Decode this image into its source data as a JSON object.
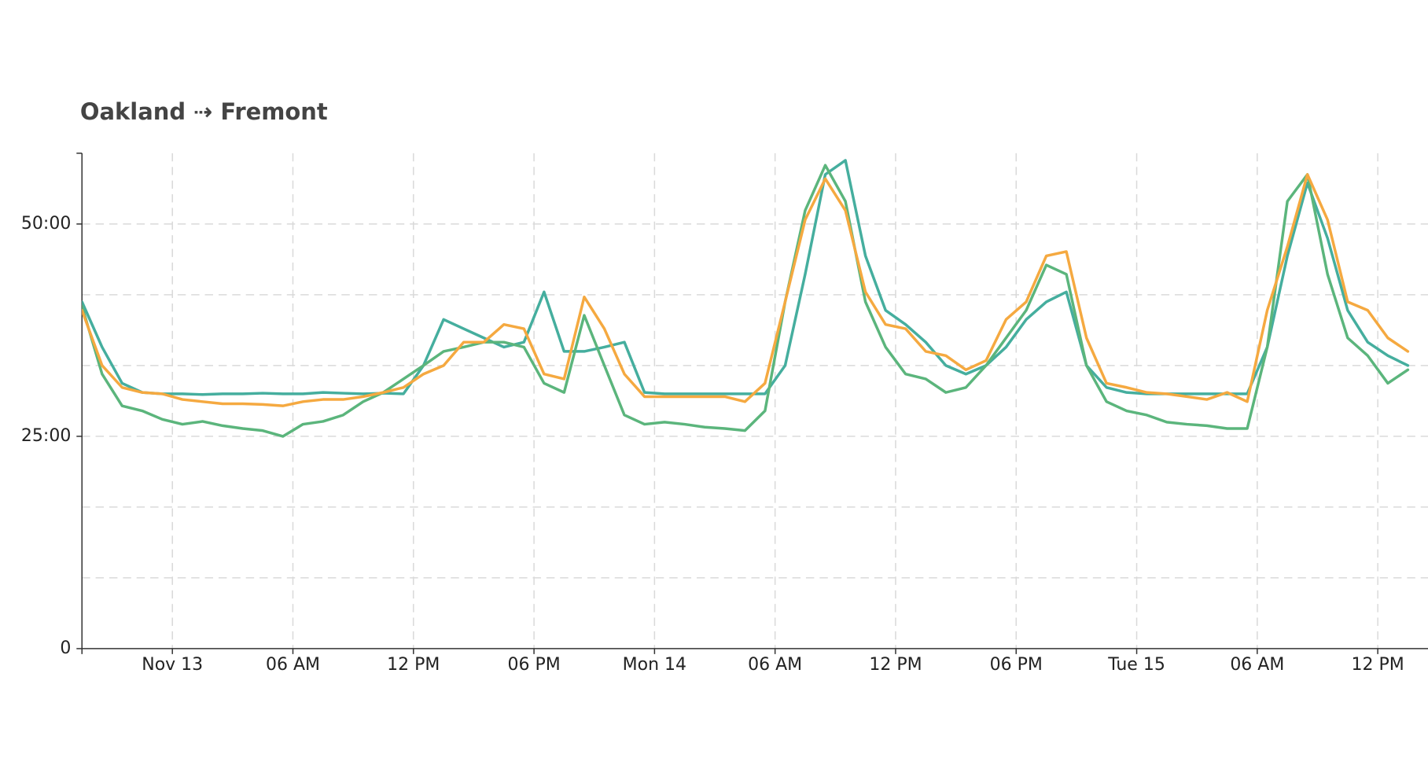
{
  "chart_data": {
    "type": "line",
    "title": "Oakland ⇢ Fremont",
    "x": [
      -4.5,
      -3.5,
      -2.5,
      -1.5,
      -0.5,
      0.5,
      1.5,
      2.5,
      3.5,
      4.5,
      5.5,
      6.5,
      7.5,
      8.5,
      9.5,
      10.5,
      11.5,
      12.5,
      13.5,
      14.5,
      15.5,
      16.5,
      17.5,
      18.5,
      19.5,
      20.5,
      21.5,
      22.5,
      23.5,
      24.5,
      25.5,
      26.5,
      27.5,
      28.5,
      29.5,
      30.5,
      31.5,
      32.5,
      33.5,
      34.5,
      35.5,
      36.5,
      37.5,
      38.5,
      39.5,
      40.5,
      41.5,
      42.5,
      43.5,
      44.5,
      45.5,
      46.5,
      47.5,
      48.5,
      49.5,
      50.5,
      51.5,
      52.5,
      53.5,
      54.5,
      55.5,
      56.5,
      57.5,
      58.5,
      59.5,
      60.5,
      61.5
    ],
    "series": [
      {
        "color": "#45ae9e",
        "values": [
          2450,
          2130,
          1875,
          1810,
          1800,
          1800,
          1795,
          1800,
          1800,
          1805,
          1800,
          1800,
          1810,
          1805,
          1800,
          1805,
          1800,
          2000,
          2325,
          2260,
          2195,
          2130,
          2165,
          2520,
          2100,
          2100,
          2130,
          2165,
          1810,
          1800,
          1800,
          1800,
          1800,
          1800,
          1800,
          2000,
          2645,
          3350,
          3450,
          2775,
          2390,
          2290,
          2165,
          2000,
          1940,
          2000,
          2130,
          2325,
          2450,
          2520,
          2000,
          1845,
          1810,
          1800,
          1800,
          1800,
          1800,
          1800,
          1800,
          2130,
          2775,
          3290,
          2900,
          2390,
          2165,
          2070,
          2000
        ]
      },
      {
        "color": "#5bb57c",
        "values": [
          2420,
          1940,
          1715,
          1680,
          1620,
          1585,
          1605,
          1575,
          1555,
          1540,
          1500,
          1585,
          1605,
          1650,
          1745,
          1810,
          1905,
          2000,
          2100,
          2130,
          2165,
          2165,
          2130,
          1875,
          1810,
          2355,
          2000,
          1650,
          1585,
          1600,
          1585,
          1565,
          1555,
          1540,
          1680,
          2450,
          3095,
          3415,
          3160,
          2450,
          2130,
          1940,
          1905,
          1810,
          1845,
          2000,
          2195,
          2390,
          2710,
          2645,
          2000,
          1745,
          1680,
          1650,
          1600,
          1585,
          1575,
          1555,
          1555,
          2130,
          3160,
          3350,
          2645,
          2195,
          2070,
          1875,
          1970
        ]
      },
      {
        "color": "#f5a940",
        "values": [
          2390,
          2000,
          1845,
          1810,
          1800,
          1760,
          1745,
          1730,
          1730,
          1725,
          1715,
          1745,
          1760,
          1760,
          1780,
          1810,
          1845,
          1940,
          2000,
          2165,
          2165,
          2290,
          2260,
          1940,
          1905,
          2485,
          2260,
          1940,
          1780,
          1780,
          1780,
          1780,
          1780,
          1745,
          1875,
          2450,
          3030,
          3320,
          3095,
          2520,
          2290,
          2260,
          2100,
          2070,
          1970,
          2035,
          2325,
          2450,
          2775,
          2805,
          2195,
          1875,
          1845,
          1810,
          1800,
          1780,
          1760,
          1810,
          1745,
          2390,
          2840,
          3350,
          3030,
          2450,
          2390,
          2195,
          2100
        ]
      }
    ],
    "xlim": [
      -4.5,
      62.5
    ],
    "xticks": [
      {
        "value": 0,
        "label": "Nov 13"
      },
      {
        "value": 6,
        "label": "06 AM"
      },
      {
        "value": 12,
        "label": "12 PM"
      },
      {
        "value": 18,
        "label": "06 PM"
      },
      {
        "value": 24,
        "label": "Mon 14"
      },
      {
        "value": 30,
        "label": "06 AM"
      },
      {
        "value": 36,
        "label": "12 PM"
      },
      {
        "value": 42,
        "label": "06 PM"
      },
      {
        "value": 48,
        "label": "Tue 15"
      },
      {
        "value": 54,
        "label": "06 AM"
      },
      {
        "value": 60,
        "label": "12 PM"
      }
    ],
    "ylim": [
      0,
      3500
    ],
    "yticks": [
      {
        "value": 0,
        "label": "0"
      },
      {
        "value": 1500,
        "label": "25:00"
      },
      {
        "value": 3000,
        "label": "50:00"
      }
    ],
    "ygrid": [
      500,
      1000,
      2000,
      2500
    ],
    "grid": true
  }
}
